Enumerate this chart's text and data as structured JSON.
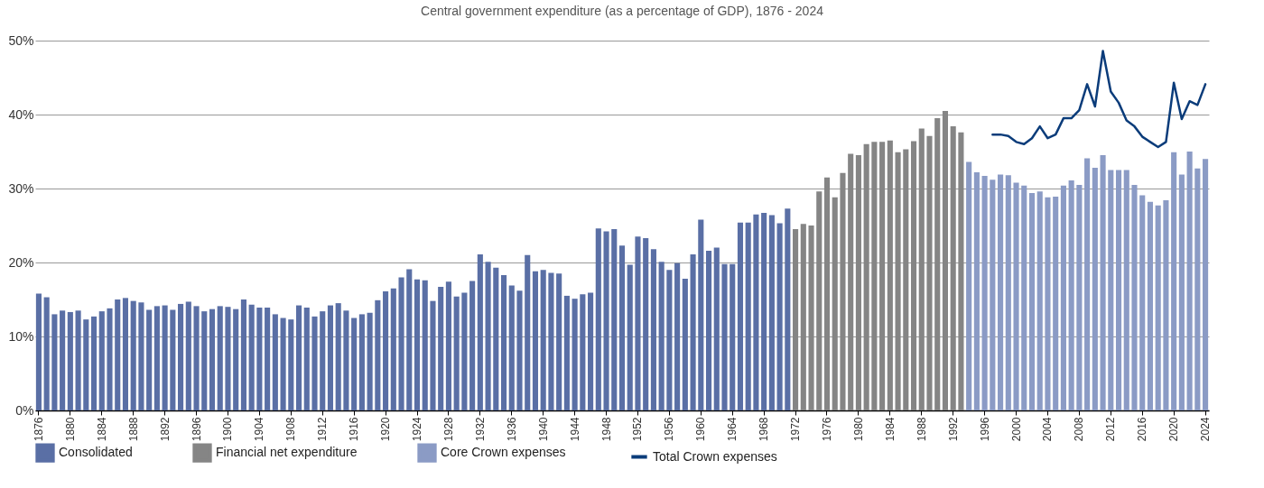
{
  "chart_data": {
    "type": "bar",
    "title": "Central government expenditure (as a percentage of GDP), 1876 - 2024",
    "categories": [
      "1876",
      null,
      null,
      null,
      "1880",
      null,
      null,
      null,
      "1884",
      null,
      null,
      null,
      "1888",
      null,
      null,
      null,
      "1892",
      null,
      null,
      null,
      "1896",
      null,
      null,
      null,
      "1900",
      null,
      null,
      null,
      "1904",
      null,
      null,
      null,
      "1908",
      null,
      null,
      null,
      "1912",
      null,
      null,
      null,
      "1916",
      null,
      null,
      null,
      "1920",
      null,
      null,
      null,
      "1924",
      null,
      null,
      null,
      "1928",
      null,
      null,
      null,
      "1932",
      null,
      null,
      null,
      "1936",
      null,
      null,
      null,
      "1940",
      null,
      null,
      null,
      "1944",
      null,
      null,
      null,
      "1948",
      null,
      null,
      null,
      "1952",
      null,
      null,
      null,
      "1956",
      null,
      null,
      null,
      "1960",
      null,
      null,
      null,
      "1964",
      null,
      null,
      null,
      "1968",
      null,
      null,
      null,
      "1972",
      null,
      null,
      null,
      "1976",
      null,
      null,
      null,
      "1980",
      null,
      null,
      null,
      "1984",
      null,
      null,
      null,
      "1988",
      null,
      null,
      null,
      "1992",
      null,
      null,
      null,
      "1996",
      null,
      null,
      null,
      "2000",
      null,
      null,
      null,
      "2004",
      null,
      null,
      null,
      "2008",
      null,
      null,
      null,
      "2012",
      null,
      null,
      null,
      "2016",
      null,
      null,
      null,
      "2020",
      null,
      null,
      null,
      "2024"
    ],
    "series": [
      {
        "name": "Consolidated",
        "color": "#5a6fa5",
        "values": [
          15.8,
          15.3,
          13.0,
          13.5,
          13.3,
          13.5,
          12.3,
          12.7,
          13.4,
          13.8,
          15.0,
          15.2,
          14.8,
          14.6,
          13.6,
          14.1,
          14.2,
          13.6,
          14.4,
          14.7,
          14.1,
          13.4,
          13.7,
          14.1,
          14.0,
          13.7,
          15.0,
          14.3,
          13.9,
          13.9,
          13.0,
          12.5,
          12.3,
          14.2,
          13.9,
          12.7,
          13.4,
          14.2,
          14.5,
          13.5,
          12.5,
          13.0,
          13.2,
          14.9,
          16.1,
          16.5,
          18.0,
          19.1,
          17.7,
          17.6,
          14.8,
          16.7,
          17.4,
          15.4,
          15.9,
          17.5,
          21.1,
          20.1,
          19.3,
          18.3,
          16.9,
          16.2,
          21.0,
          18.8,
          19.0,
          18.6,
          18.5,
          15.5,
          15.1,
          15.7,
          15.9,
          24.6,
          24.2,
          24.5,
          22.3,
          19.7,
          23.5,
          23.3,
          21.8,
          20.1,
          19.0,
          19.9,
          17.8,
          21.1,
          25.8,
          21.6,
          22.0,
          19.8,
          19.8,
          25.4,
          25.4,
          26.5,
          26.7,
          26.4,
          25.3,
          27.3,
          null,
          null,
          null,
          null,
          null,
          null,
          null,
          null,
          null,
          null,
          null,
          null,
          null,
          null,
          null,
          null,
          null,
          null,
          null,
          null,
          null,
          null,
          null,
          null,
          null,
          null,
          null,
          null,
          null,
          null,
          null,
          null,
          null,
          null,
          null,
          null,
          null,
          null,
          null,
          null,
          null,
          null,
          null,
          null,
          null,
          null,
          null,
          null,
          null,
          null,
          null,
          null,
          null
        ]
      },
      {
        "name": "Financial net expenditure",
        "color": "#858585",
        "values": [
          null,
          null,
          null,
          null,
          null,
          null,
          null,
          null,
          null,
          null,
          null,
          null,
          null,
          null,
          null,
          null,
          null,
          null,
          null,
          null,
          null,
          null,
          null,
          null,
          null,
          null,
          null,
          null,
          null,
          null,
          null,
          null,
          null,
          null,
          null,
          null,
          null,
          null,
          null,
          null,
          null,
          null,
          null,
          null,
          null,
          null,
          null,
          null,
          null,
          null,
          null,
          null,
          null,
          null,
          null,
          null,
          null,
          null,
          null,
          null,
          null,
          null,
          null,
          null,
          null,
          null,
          null,
          null,
          null,
          null,
          null,
          null,
          null,
          null,
          null,
          null,
          null,
          null,
          null,
          null,
          null,
          null,
          null,
          null,
          null,
          null,
          null,
          null,
          null,
          null,
          null,
          null,
          null,
          null,
          null,
          null,
          24.5,
          25.2,
          25.0,
          29.6,
          31.5,
          28.8,
          32.1,
          34.7,
          34.5,
          36.0,
          36.3,
          36.3,
          36.5,
          34.9,
          35.3,
          36.4,
          38.1,
          37.1,
          39.5,
          40.5,
          38.4,
          37.6,
          null,
          null,
          null,
          null,
          null,
          null,
          null,
          null,
          null,
          null,
          null,
          null,
          null,
          null,
          null,
          null,
          null,
          null,
          null,
          null,
          null,
          null,
          null,
          null,
          null,
          null,
          null,
          null,
          null,
          null,
          null
        ]
      },
      {
        "name": "Core Crown  expenses",
        "color": "#8b9bc5",
        "values": [
          null,
          null,
          null,
          null,
          null,
          null,
          null,
          null,
          null,
          null,
          null,
          null,
          null,
          null,
          null,
          null,
          null,
          null,
          null,
          null,
          null,
          null,
          null,
          null,
          null,
          null,
          null,
          null,
          null,
          null,
          null,
          null,
          null,
          null,
          null,
          null,
          null,
          null,
          null,
          null,
          null,
          null,
          null,
          null,
          null,
          null,
          null,
          null,
          null,
          null,
          null,
          null,
          null,
          null,
          null,
          null,
          null,
          null,
          null,
          null,
          null,
          null,
          null,
          null,
          null,
          null,
          null,
          null,
          null,
          null,
          null,
          null,
          null,
          null,
          null,
          null,
          null,
          null,
          null,
          null,
          null,
          null,
          null,
          null,
          null,
          null,
          null,
          null,
          null,
          null,
          null,
          null,
          null,
          null,
          null,
          null,
          null,
          null,
          null,
          null,
          null,
          null,
          null,
          null,
          null,
          null,
          null,
          null,
          null,
          null,
          null,
          null,
          null,
          null,
          null,
          null,
          null,
          null,
          33.6,
          32.2,
          31.7,
          31.2,
          31.9,
          31.8,
          30.8,
          30.4,
          29.4,
          29.6,
          28.8,
          28.9,
          30.4,
          31.1,
          30.5,
          34.1,
          32.8,
          34.5,
          32.5,
          32.5,
          32.5,
          30.5,
          29.1,
          28.2,
          27.7,
          28.4,
          34.9,
          31.9,
          35.0,
          32.7,
          34.0
        ]
      },
      {
        "name": "Total Crown  expenses",
        "type": "line",
        "color": "#0b3c7a",
        "values": [
          null,
          null,
          null,
          null,
          null,
          null,
          null,
          null,
          null,
          null,
          null,
          null,
          null,
          null,
          null,
          null,
          null,
          null,
          null,
          null,
          null,
          null,
          null,
          null,
          null,
          null,
          null,
          null,
          null,
          null,
          null,
          null,
          null,
          null,
          null,
          null,
          null,
          null,
          null,
          null,
          null,
          null,
          null,
          null,
          null,
          null,
          null,
          null,
          null,
          null,
          null,
          null,
          null,
          null,
          null,
          null,
          null,
          null,
          null,
          null,
          null,
          null,
          null,
          null,
          null,
          null,
          null,
          null,
          null,
          null,
          null,
          null,
          null,
          null,
          null,
          null,
          null,
          null,
          null,
          null,
          null,
          null,
          null,
          null,
          null,
          null,
          null,
          null,
          null,
          null,
          null,
          null,
          null,
          null,
          null,
          null,
          null,
          null,
          null,
          null,
          null,
          null,
          null,
          null,
          null,
          null,
          null,
          null,
          null,
          null,
          null,
          null,
          null,
          null,
          null,
          null,
          null,
          null,
          null,
          null,
          null,
          37.3,
          37.3,
          37.1,
          36.3,
          36.0,
          36.8,
          38.4,
          36.8,
          37.3,
          39.5,
          39.5,
          40.6,
          44.1,
          41.1,
          48.6,
          43.1,
          41.6,
          39.2,
          38.4,
          37.0,
          36.3,
          35.6,
          36.3,
          44.3,
          39.4,
          41.8,
          41.3,
          44.1
        ]
      }
    ],
    "ylim": [
      0,
      50
    ],
    "yticks": [
      {
        "value": 0,
        "label": "0%"
      },
      {
        "value": 10,
        "label": "10%"
      },
      {
        "value": 20,
        "label": "20%"
      },
      {
        "value": 30,
        "label": "30%"
      },
      {
        "value": 40,
        "label": "40%"
      },
      {
        "value": 50,
        "label": "50%"
      }
    ],
    "grid": "y",
    "legend": "bottom"
  }
}
